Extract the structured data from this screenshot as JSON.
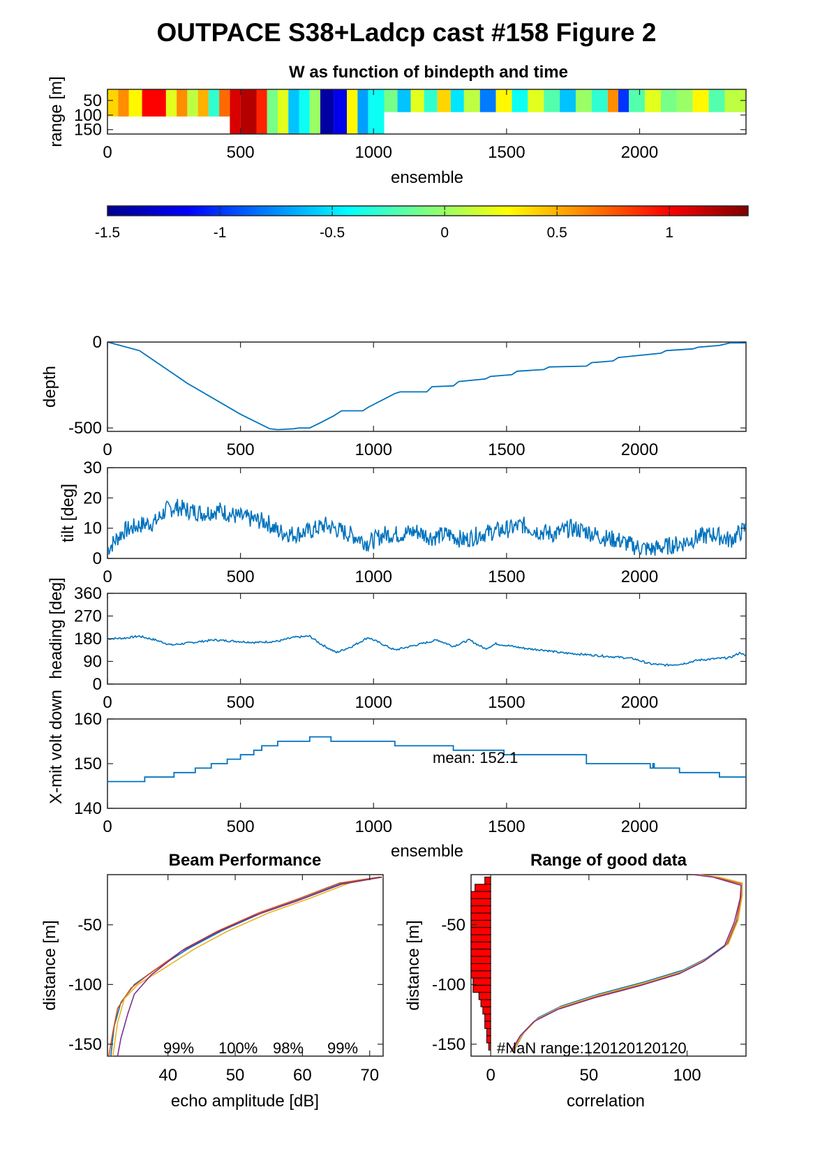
{
  "figure": {
    "title": "OUTPACE S38+Ladcp cast #158 Figure 2"
  },
  "colorbar": {
    "ticks": [
      -1.5,
      -1,
      -0.5,
      0,
      0.5,
      1
    ],
    "tick_labels": [
      "-1.5",
      "-1",
      "-0.5",
      "0",
      "0.5",
      "1"
    ],
    "range": [
      -1.5,
      1.35
    ]
  },
  "chart_data": [
    {
      "id": "w_panel",
      "type": "heatmap",
      "title": "W as function of bindepth and time",
      "xlabel": "ensemble",
      "ylabel": "range [m]",
      "xlim": [
        0,
        2400
      ],
      "ylim": [
        12,
        165
      ],
      "xticks": [
        0,
        500,
        1000,
        1500,
        2000
      ],
      "yticks": [
        50,
        100,
        150
      ],
      "value_range": [
        -1.5,
        1.35
      ],
      "segments": [
        {
          "x0": 0,
          "x1": 40,
          "w": 0.4
        },
        {
          "x0": 40,
          "x1": 80,
          "w": 0.6
        },
        {
          "x0": 80,
          "x1": 130,
          "w": 0.3
        },
        {
          "x0": 130,
          "x1": 220,
          "w": 1.0
        },
        {
          "x0": 220,
          "x1": 260,
          "w": 0.2
        },
        {
          "x0": 260,
          "x1": 300,
          "w": 0.6
        },
        {
          "x0": 300,
          "x1": 340,
          "w": 0.1
        },
        {
          "x0": 340,
          "x1": 380,
          "w": 0.5
        },
        {
          "x0": 380,
          "x1": 420,
          "w": -0.3
        },
        {
          "x0": 420,
          "x1": 460,
          "w": 0.7
        },
        {
          "x0": 460,
          "x1": 500,
          "w": 1.1
        },
        {
          "x0": 500,
          "x1": 560,
          "w": 1.2
        },
        {
          "x0": 560,
          "x1": 600,
          "w": 0.9
        },
        {
          "x0": 600,
          "x1": 640,
          "w": -0.1
        },
        {
          "x0": 640,
          "x1": 680,
          "w": 0.2
        },
        {
          "x0": 680,
          "x1": 720,
          "w": -0.6
        },
        {
          "x0": 720,
          "x1": 760,
          "w": -0.4
        },
        {
          "x0": 760,
          "x1": 800,
          "w": 0.0
        },
        {
          "x0": 800,
          "x1": 850,
          "w": -1.4
        },
        {
          "x0": 850,
          "x1": 900,
          "w": -1.2
        },
        {
          "x0": 900,
          "x1": 940,
          "w": 0.3
        },
        {
          "x0": 940,
          "x1": 980,
          "w": -0.7
        },
        {
          "x0": 980,
          "x1": 1040,
          "w": -0.4
        },
        {
          "x0": 1040,
          "x1": 1090,
          "w": -0.1
        },
        {
          "x0": 1090,
          "x1": 1140,
          "w": -0.6
        },
        {
          "x0": 1140,
          "x1": 1190,
          "w": 0.2
        },
        {
          "x0": 1190,
          "x1": 1240,
          "w": -0.3
        },
        {
          "x0": 1240,
          "x1": 1290,
          "w": 0.4
        },
        {
          "x0": 1290,
          "x1": 1340,
          "w": -0.5
        },
        {
          "x0": 1340,
          "x1": 1400,
          "w": 0.1
        },
        {
          "x0": 1400,
          "x1": 1460,
          "w": -0.8
        },
        {
          "x0": 1460,
          "x1": 1520,
          "w": 0.3
        },
        {
          "x0": 1520,
          "x1": 1580,
          "w": -0.4
        },
        {
          "x0": 1580,
          "x1": 1640,
          "w": 0.2
        },
        {
          "x0": 1640,
          "x1": 1700,
          "w": -0.2
        },
        {
          "x0": 1700,
          "x1": 1760,
          "w": -0.6
        },
        {
          "x0": 1760,
          "x1": 1820,
          "w": 0.0
        },
        {
          "x0": 1820,
          "x1": 1880,
          "w": -0.3
        },
        {
          "x0": 1880,
          "x1": 1920,
          "w": 0.6
        },
        {
          "x0": 1920,
          "x1": 1960,
          "w": -1.0
        },
        {
          "x0": 1960,
          "x1": 2020,
          "w": -0.2
        },
        {
          "x0": 2020,
          "x1": 2080,
          "w": 0.2
        },
        {
          "x0": 2080,
          "x1": 2140,
          "w": -0.1
        },
        {
          "x0": 2140,
          "x1": 2200,
          "w": 0.0
        },
        {
          "x0": 2200,
          "x1": 2260,
          "w": 0.3
        },
        {
          "x0": 2260,
          "x1": 2320,
          "w": -0.2
        },
        {
          "x0": 2320,
          "x1": 2400,
          "w": 0.1
        }
      ]
    },
    {
      "id": "depth_panel",
      "type": "line",
      "ylabel": "depth",
      "xlim": [
        0,
        2400
      ],
      "ylim": [
        -520,
        0
      ],
      "xticks": [
        0,
        500,
        1000,
        1500,
        2000
      ],
      "yticks": [
        -500,
        0
      ],
      "series": [
        {
          "x": [
            0,
            120,
            300,
            500,
            610,
            640,
            700,
            720,
            760,
            800,
            850,
            880,
            960,
            980,
            1080,
            1100,
            1200,
            1220,
            1300,
            1320,
            1420,
            1440,
            1520,
            1540,
            1640,
            1660,
            1800,
            1820,
            1900,
            1920,
            2080,
            2100,
            2200,
            2220,
            2300,
            2340,
            2400
          ],
          "y": [
            0,
            -50,
            -240,
            -420,
            -505,
            -510,
            -505,
            -500,
            -500,
            -470,
            -430,
            -400,
            -400,
            -380,
            -300,
            -290,
            -290,
            -260,
            -255,
            -230,
            -215,
            -200,
            -190,
            -170,
            -160,
            -145,
            -140,
            -120,
            -110,
            -90,
            -65,
            -50,
            -40,
            -30,
            -20,
            -5,
            -5
          ]
        }
      ]
    },
    {
      "id": "tilt_panel",
      "type": "line",
      "ylabel": "tilt [deg]",
      "xlim": [
        0,
        2400
      ],
      "ylim": [
        0,
        30
      ],
      "xticks": [
        0,
        500,
        1000,
        1500,
        2000
      ],
      "yticks": [
        0,
        10,
        20,
        30
      ],
      "series": [
        {
          "x": [
            0,
            60,
            120,
            180,
            220,
            260,
            300,
            360,
            420,
            480,
            540,
            600,
            640,
            700,
            760,
            820,
            880,
            940,
            980,
            1040,
            1100,
            1160,
            1220,
            1280,
            1340,
            1400,
            1460,
            1520,
            1560,
            1620,
            1680,
            1740,
            1800,
            1860,
            1920,
            1980,
            2040,
            2100,
            2160,
            2220,
            2280,
            2340,
            2400
          ],
          "y": [
            3,
            9,
            11,
            12,
            16,
            17,
            16,
            15,
            16,
            14,
            13,
            12,
            9,
            8,
            9,
            11,
            9,
            7,
            5,
            8,
            8,
            9,
            7,
            8,
            6,
            8,
            9,
            10,
            11,
            9,
            8,
            10,
            9,
            7,
            6,
            4,
            3,
            4,
            5,
            7,
            8,
            6,
            10
          ]
        }
      ]
    },
    {
      "id": "heading_panel",
      "type": "line",
      "ylabel": "heading [deg]",
      "xlim": [
        0,
        2400
      ],
      "ylim": [
        0,
        360
      ],
      "xticks": [
        0,
        500,
        1000,
        1500,
        2000
      ],
      "yticks": [
        0,
        90,
        180,
        270,
        360
      ],
      "series": [
        {
          "x": [
            0,
            60,
            120,
            180,
            240,
            320,
            400,
            480,
            560,
            640,
            700,
            760,
            800,
            860,
            920,
            980,
            1020,
            1080,
            1140,
            1200,
            1240,
            1300,
            1360,
            1420,
            1460,
            1520,
            1580,
            1640,
            1700,
            1760,
            1820,
            1880,
            1940,
            1980,
            2040,
            2100,
            2160,
            2220,
            2280,
            2340,
            2380,
            2400
          ],
          "y": [
            180,
            182,
            190,
            175,
            155,
            165,
            175,
            170,
            165,
            170,
            185,
            190,
            160,
            125,
            150,
            185,
            165,
            135,
            150,
            165,
            175,
            150,
            175,
            140,
            160,
            150,
            140,
            135,
            125,
            120,
            115,
            110,
            105,
            100,
            80,
            75,
            80,
            95,
            100,
            105,
            125,
            108
          ]
        }
      ]
    },
    {
      "id": "volt_panel",
      "type": "line",
      "ylabel": "X-mit volt down",
      "xlabel": "ensemble",
      "annotation": "mean: 152.1",
      "xlim": [
        0,
        2400
      ],
      "ylim": [
        140,
        160
      ],
      "xticks": [
        0,
        500,
        1000,
        1500,
        2000
      ],
      "yticks": [
        140,
        150,
        160
      ],
      "series": [
        {
          "x": [
            0,
            140,
            140,
            250,
            250,
            330,
            330,
            390,
            390,
            450,
            450,
            500,
            500,
            550,
            550,
            580,
            580,
            640,
            640,
            760,
            760,
            840,
            840,
            1080,
            1080,
            1300,
            1300,
            1490,
            1490,
            1800,
            1800,
            2040,
            2040,
            2050,
            2050,
            2055,
            2055,
            2060,
            2060,
            2150,
            2150,
            2300,
            2300,
            2400
          ],
          "y": [
            146,
            146,
            147,
            147,
            148,
            148,
            149,
            149,
            150,
            150,
            151,
            151,
            152,
            152,
            153,
            153,
            154,
            154,
            155,
            155,
            156,
            156,
            155,
            155,
            154,
            154,
            153,
            153,
            152,
            152,
            150,
            150,
            149,
            149,
            150,
            150,
            149,
            149,
            149,
            149,
            148,
            148,
            147,
            147
          ]
        }
      ]
    },
    {
      "id": "beam_performance",
      "type": "line",
      "title": "Beam Performance",
      "xlabel": "echo amplitude [dB]",
      "ylabel": "distance [m]",
      "xlim": [
        31,
        72
      ],
      "ylim": [
        -160,
        -8
      ],
      "xticks": [
        40,
        50,
        60,
        70
      ],
      "yticks": [
        -150,
        -100,
        -50
      ],
      "annotations": [
        "99%",
        "100%",
        "98%",
        "99%"
      ],
      "series": [
        {
          "color": "#0072bd",
          "x": [
            72,
            66,
            60,
            54,
            48,
            43,
            38,
            35,
            33,
            32,
            31.5
          ],
          "y": [
            -10,
            -15,
            -28,
            -40,
            -55,
            -70,
            -88,
            -100,
            -115,
            -135,
            -160
          ]
        },
        {
          "color": "#d95319",
          "x": [
            71.5,
            65.5,
            59.5,
            53.5,
            47.5,
            42.5,
            37.5,
            34.5,
            32.5,
            31.8,
            31.2
          ],
          "y": [
            -10,
            -15,
            -28,
            -40,
            -55,
            -70,
            -90,
            -103,
            -120,
            -140,
            -160
          ]
        },
        {
          "color": "#edb120",
          "x": [
            72,
            67,
            61,
            55,
            49,
            44,
            39,
            35.5,
            33.5,
            32.5,
            31.8
          ],
          "y": [
            -10,
            -15,
            -28,
            -40,
            -55,
            -70,
            -88,
            -100,
            -112,
            -132,
            -160
          ]
        },
        {
          "color": "#7e2f8e",
          "x": [
            71.8,
            65.8,
            59.2,
            53,
            47,
            42,
            37.5,
            35,
            34,
            33,
            32.5
          ],
          "y": [
            -10,
            -16,
            -30,
            -42,
            -57,
            -72,
            -92,
            -108,
            -125,
            -145,
            -160
          ]
        }
      ]
    },
    {
      "id": "range_good_data",
      "type": "line",
      "title": "Range of good data",
      "xlabel": "correlation",
      "ylabel": "distance [m]",
      "annotation": "#NaN range:120120120120",
      "xlim": [
        -10,
        130
      ],
      "ylim": [
        -160,
        -8
      ],
      "xticks": [
        0,
        50,
        100
      ],
      "yticks": [
        -150,
        -100,
        -50
      ],
      "bar_x": [
        -3,
        -8,
        -10,
        -10,
        -10,
        -10,
        -10,
        -10,
        -10,
        -10,
        -10,
        -10,
        -10,
        -10,
        -9,
        -9,
        -6,
        -5,
        -4,
        -3,
        -3,
        -2,
        -2,
        -1
      ],
      "series": [
        {
          "color": "#0072bd",
          "x": [
            12,
            17,
            24,
            36,
            55,
            78,
            98,
            110,
            121,
            126,
            128,
            128,
            115,
            105
          ],
          "y": [
            -155,
            -140,
            -128,
            -118,
            -108,
            -98,
            -88,
            -78,
            -65,
            -45,
            -25,
            -15,
            -10,
            -8
          ]
        },
        {
          "color": "#d95319",
          "x": [
            11,
            16,
            23,
            35,
            54,
            77,
            97,
            109,
            120,
            125,
            127.5,
            128,
            114,
            104
          ],
          "y": [
            -156,
            -142,
            -130,
            -120,
            -110,
            -100,
            -90,
            -80,
            -67,
            -47,
            -27,
            -16,
            -10,
            -8
          ]
        },
        {
          "color": "#edb120",
          "x": [
            11.5,
            16.5,
            23.5,
            35.5,
            54.5,
            77.5,
            97.5,
            109.5,
            121,
            126,
            128,
            128,
            116,
            106
          ],
          "y": [
            -156,
            -141,
            -129,
            -119,
            -109,
            -99,
            -89,
            -79,
            -66,
            -46,
            -26,
            -15,
            -10,
            -8
          ]
        },
        {
          "color": "#7e2f8e",
          "x": [
            10,
            15,
            22,
            34,
            53,
            76,
            96,
            108,
            119,
            124,
            127,
            127.5,
            113,
            103
          ],
          "y": [
            -157,
            -143,
            -131,
            -121,
            -111,
            -101,
            -91,
            -81,
            -68,
            -48,
            -28,
            -17,
            -10,
            -8
          ]
        }
      ]
    }
  ]
}
